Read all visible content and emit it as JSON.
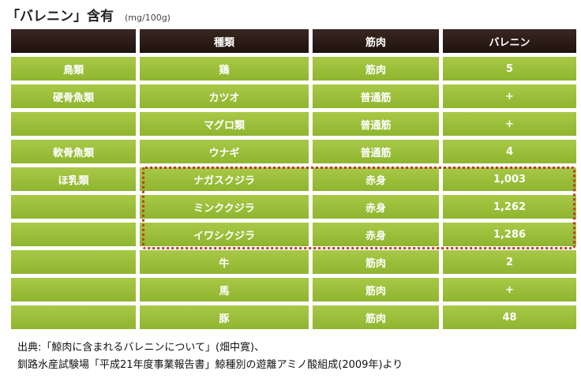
{
  "title": "「バレニン」含有",
  "unit": "(mg/100g)",
  "table": {
    "headers": [
      "",
      "種類",
      "筋肉",
      "バレニン"
    ],
    "rows": [
      [
        "鳥類",
        "鶏",
        "筋肉",
        "5"
      ],
      [
        "硬骨魚類",
        "カツオ",
        "普通筋",
        "+"
      ],
      [
        "",
        "マグロ類",
        "普通筋",
        "+"
      ],
      [
        "軟骨魚類",
        "ウナギ",
        "普通筋",
        "4"
      ],
      [
        "ほ乳類",
        "ナガスクジラ",
        "赤身",
        "1,003"
      ],
      [
        "",
        "ミンククジラ",
        "赤身",
        "1,262"
      ],
      [
        "",
        "イワシクジラ",
        "赤身",
        "1,286"
      ],
      [
        "",
        "牛",
        "筋肉",
        "2"
      ],
      [
        "",
        "馬",
        "筋肉",
        "+"
      ],
      [
        "",
        "豚",
        "筋肉",
        "48"
      ]
    ]
  },
  "source": {
    "line1": "出典:「鯨肉に含まれるバレニンについて」(畑中寛)、",
    "line2": "釧路水産試験場「平成21年度事業報告書」鯨種別の遊離アミノ酸組成(2009年)より"
  }
}
